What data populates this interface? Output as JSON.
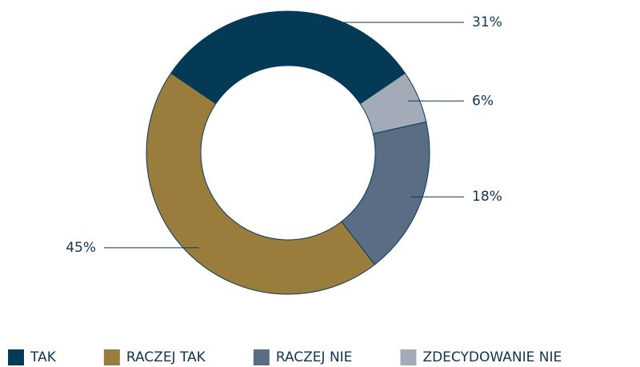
{
  "chart_data": {
    "type": "donut",
    "categories": [
      "TAK",
      "RACZEJ TAK",
      "RACZEJ NIE",
      "ZDECYDOWANIE NIE"
    ],
    "values": [
      31,
      45,
      18,
      6
    ],
    "value_labels": [
      "31%",
      "45%",
      "18%",
      "6%"
    ],
    "colors": [
      "#053a56",
      "#9a7d3c",
      "#5a6d85",
      "#a3abb8"
    ],
    "legend": "bottom"
  }
}
